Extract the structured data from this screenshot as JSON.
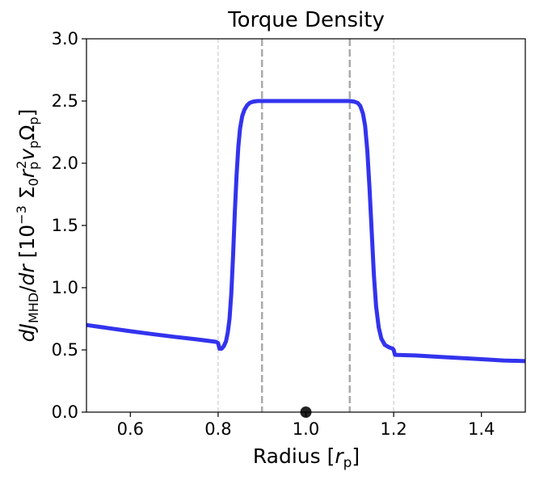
{
  "chart_data": {
    "type": "line",
    "title": "Torque Density",
    "xlabel": {
      "main": "Radius [",
      "var": "r",
      "sub": "p",
      "end": "]"
    },
    "ylabel": {
      "d1": "d",
      "J": "J",
      "sub1": "MHD",
      "slash": "/",
      "d2": "d",
      "r": "r",
      "bracket": " [10",
      "exp": "−3",
      "sigma": " Σ",
      "sub0": "0",
      "r2": "r",
      "subp": "p",
      "sup2": "2",
      "v": "v",
      "subp2": "p",
      "omega": "Ω",
      "subp3": "p",
      "close": "]"
    },
    "xlim": [
      0.5,
      1.5
    ],
    "ylim": [
      0.0,
      3.0
    ],
    "xticks": [
      0.6,
      0.8,
      1.0,
      1.2,
      1.4
    ],
    "xtick_labels": [
      "0.6",
      "0.8",
      "1.0",
      "1.2",
      "1.4"
    ],
    "yticks": [
      0.0,
      0.5,
      1.0,
      1.5,
      2.0,
      2.5,
      3.0
    ],
    "ytick_labels": [
      "0.0",
      "0.5",
      "1.0",
      "1.5",
      "2.0",
      "2.5",
      "3.0"
    ],
    "grid": false,
    "series": [
      {
        "color": "#3333ee",
        "x": [
          0.5,
          0.55,
          0.6,
          0.65,
          0.7,
          0.75,
          0.795,
          0.8,
          0.803,
          0.808,
          0.813,
          0.818,
          0.822,
          0.826,
          0.83,
          0.834,
          0.838,
          0.842,
          0.846,
          0.85,
          0.855,
          0.86,
          0.866,
          0.872,
          0.88,
          0.89,
          0.9,
          1.0,
          1.1,
          1.11,
          1.118,
          1.124,
          1.13,
          1.135,
          1.14,
          1.145,
          1.15,
          1.155,
          1.16,
          1.166,
          1.172,
          1.18,
          1.19,
          1.198,
          1.2,
          1.203,
          1.25,
          1.3,
          1.35,
          1.4,
          1.45,
          1.5
        ],
        "y": [
          0.7,
          0.675,
          0.65,
          0.627,
          0.605,
          0.585,
          0.565,
          0.555,
          0.51,
          0.51,
          0.53,
          0.57,
          0.64,
          0.75,
          0.95,
          1.25,
          1.6,
          1.9,
          2.13,
          2.28,
          2.38,
          2.43,
          2.465,
          2.485,
          2.495,
          2.5,
          2.5,
          2.5,
          2.5,
          2.495,
          2.485,
          2.46,
          2.4,
          2.3,
          2.1,
          1.8,
          1.45,
          1.1,
          0.85,
          0.68,
          0.59,
          0.54,
          0.52,
          0.51,
          0.5,
          0.46,
          0.455,
          0.445,
          0.435,
          0.425,
          0.415,
          0.41
        ]
      }
    ],
    "vlines": [
      {
        "x": 0.8,
        "style": "dashed-thin",
        "color": "#cccccc"
      },
      {
        "x": 0.9,
        "style": "dashed-thick",
        "color": "#aaaaaa"
      },
      {
        "x": 1.1,
        "style": "dashed-thick",
        "color": "#aaaaaa"
      },
      {
        "x": 1.2,
        "style": "dashed-thin",
        "color": "#cccccc"
      }
    ],
    "marker": {
      "x": 1.0,
      "y": 0.0,
      "color": "#222222"
    }
  }
}
